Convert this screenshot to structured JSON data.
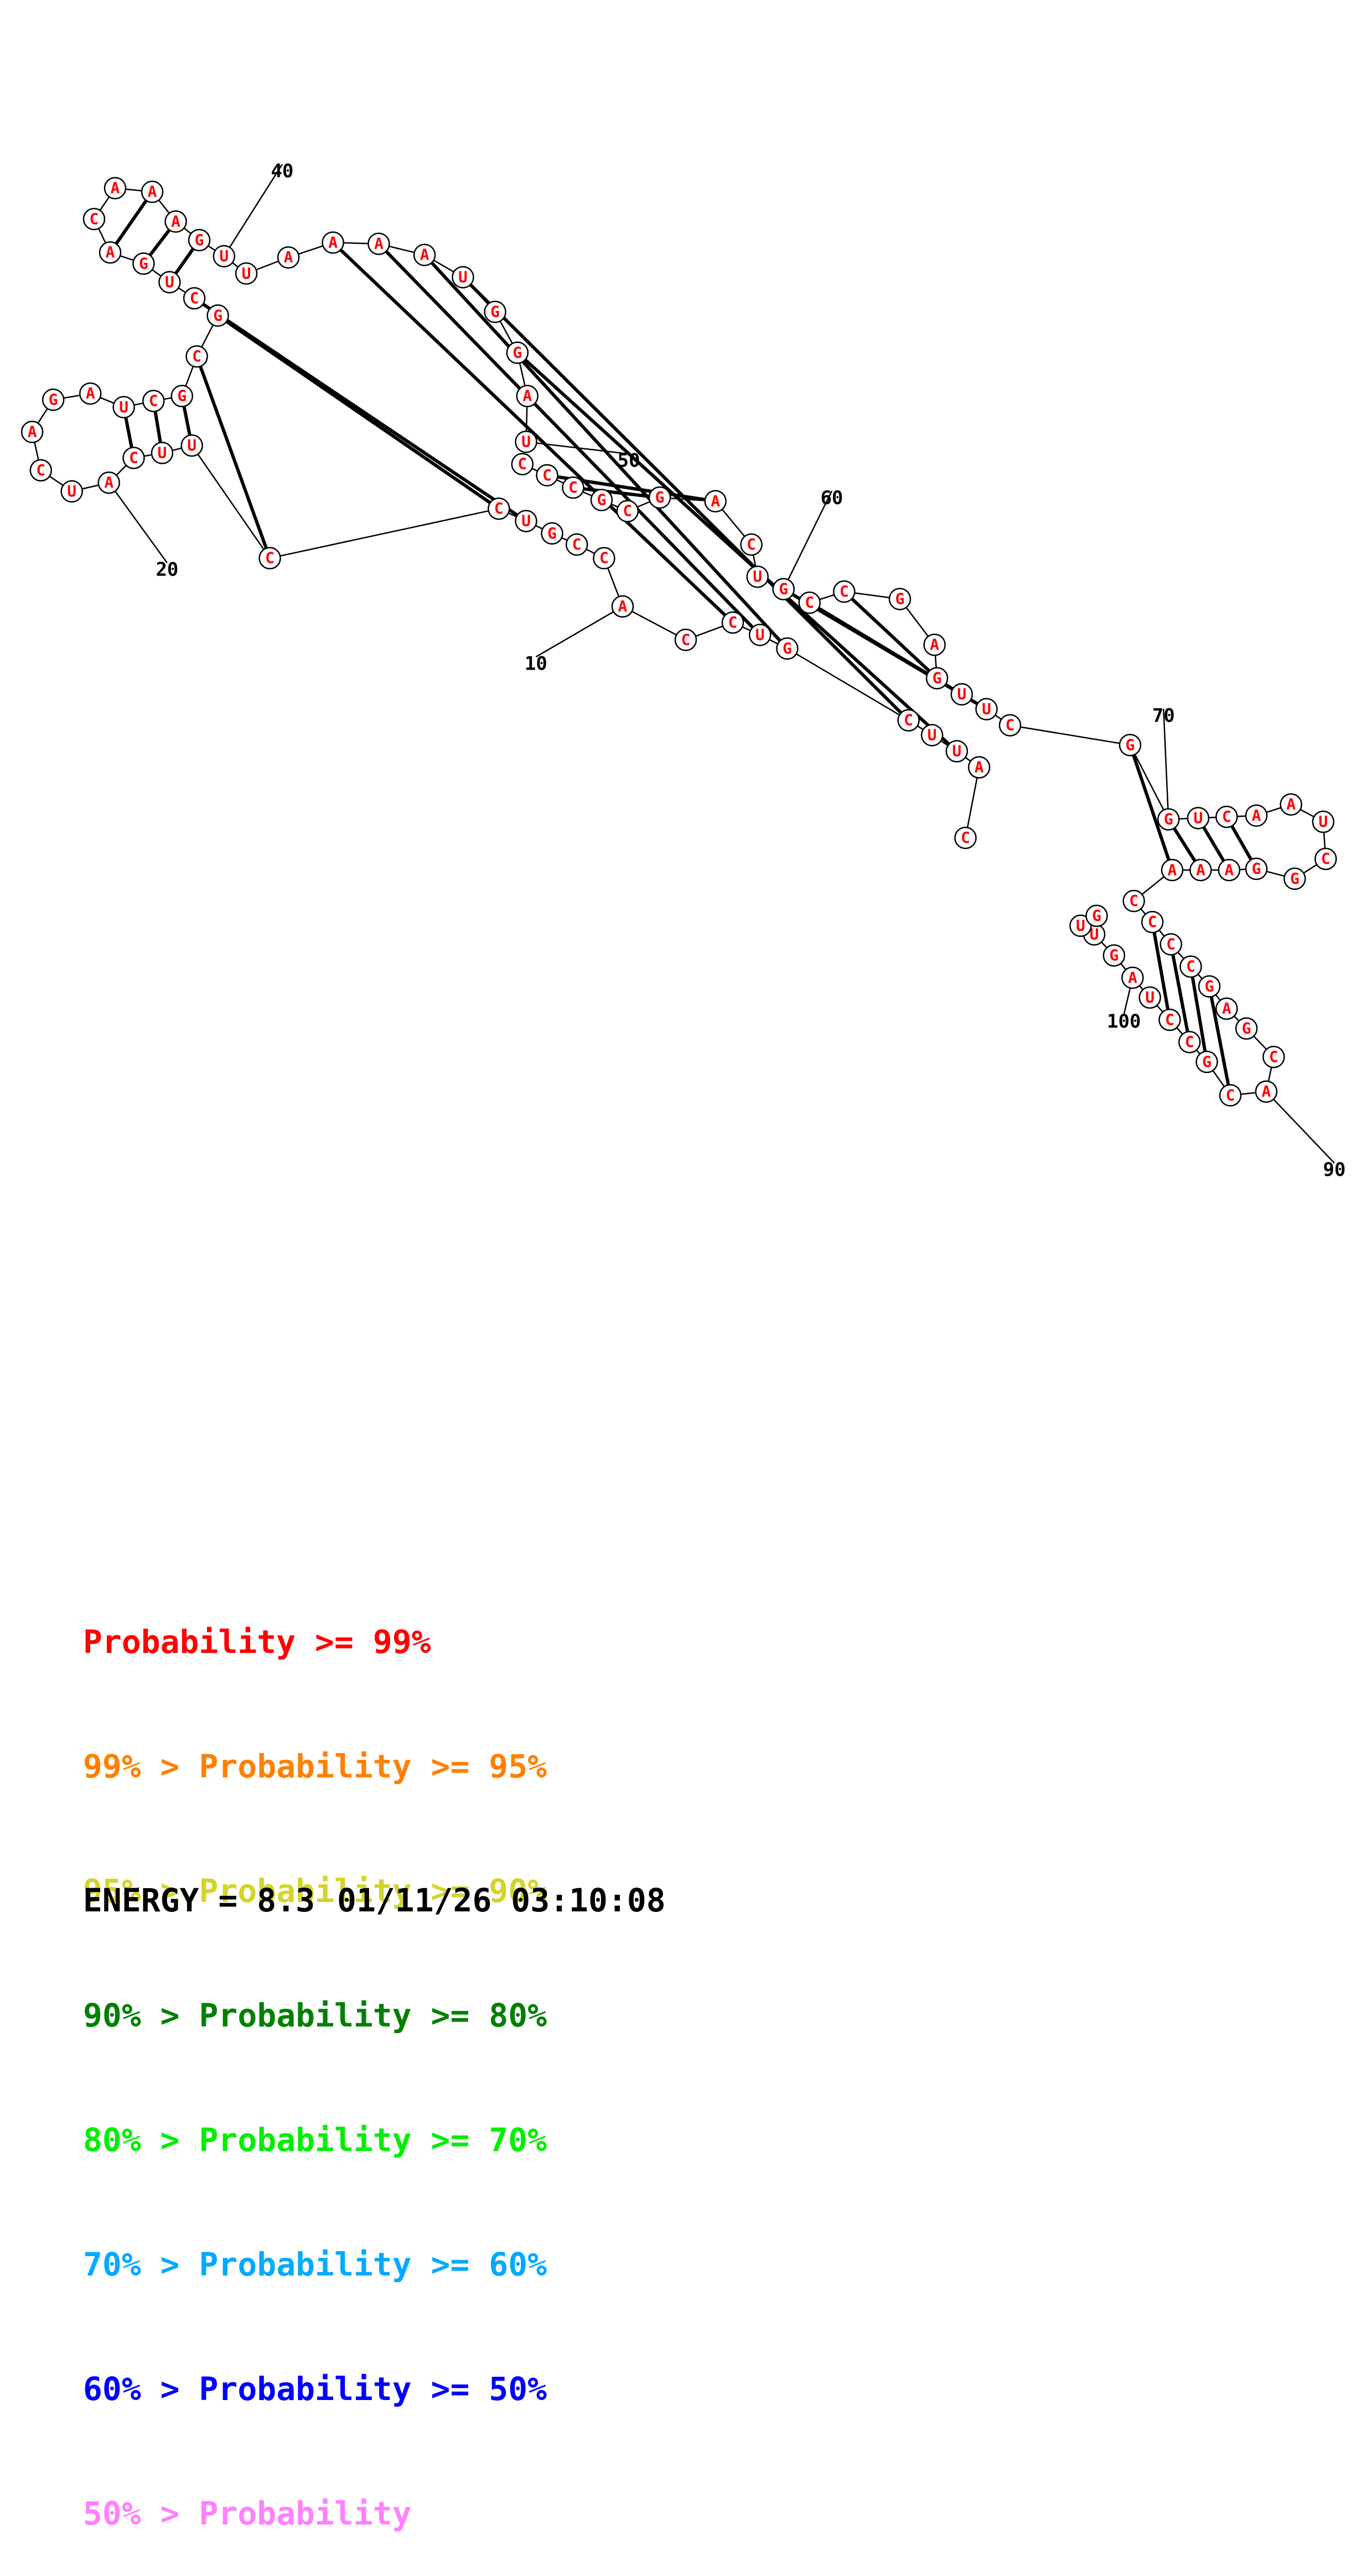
{
  "sequence": "CAUUCGUCCACCGUCCUUCAUCAGAUCGCGCUGACAAAGUUAAAAUGGAUCCCGCGACUGCCGAGUUCGGUCAAUCGGAAACCCCGAGCACGCCUAGUUG",
  "pairs": [
    [
      2,
      47
    ],
    [
      4,
      45
    ],
    [
      5,
      44
    ],
    [
      6,
      43
    ],
    [
      7,
      42
    ],
    [
      13,
      30
    ],
    [
      14,
      29
    ],
    [
      15,
      28
    ],
    [
      16,
      27
    ],
    [
      17,
      26
    ],
    [
      18,
      25
    ],
    [
      31,
      38
    ],
    [
      32,
      37
    ],
    [
      33,
      36
    ],
    [
      51,
      56
    ],
    [
      52,
      55
    ],
    [
      59,
      66
    ],
    [
      60,
      65
    ],
    [
      61,
      64
    ],
    [
      68,
      80
    ],
    [
      69,
      79
    ],
    [
      70,
      78
    ],
    [
      71,
      77
    ],
    [
      82,
      93
    ],
    [
      83,
      92
    ],
    [
      84,
      91
    ],
    [
      85,
      90
    ]
  ],
  "probability_levels": [
    9,
    9,
    9,
    9,
    9,
    9,
    9,
    9,
    9,
    9,
    9,
    9,
    9,
    9,
    9,
    9,
    9,
    9,
    9,
    9,
    9,
    9,
    9,
    9,
    9,
    9,
    9,
    9,
    9,
    9,
    9,
    9,
    9,
    9,
    9,
    9,
    9,
    9,
    9,
    9,
    9,
    9,
    9,
    9,
    9,
    9,
    9,
    9,
    9,
    9,
    9,
    9,
    9,
    9,
    9,
    9,
    9,
    9,
    9,
    9,
    9,
    9,
    9,
    9,
    9,
    9,
    9,
    9,
    9,
    9,
    9,
    9,
    9,
    9,
    9,
    9,
    9,
    9,
    9,
    9,
    9,
    9,
    9,
    9,
    9,
    9,
    9,
    9,
    9,
    9,
    9,
    9,
    9,
    9,
    9,
    9,
    9,
    9,
    9,
    9
  ],
  "tick_labels": [
    "10",
    "20",
    "40",
    "50",
    "60",
    "70",
    "90",
    "100"
  ],
  "legend": [
    {
      "range": "",
      "label": "Probability >= 99%",
      "color": "#ff0000"
    },
    {
      "range": "99% > ",
      "label": "Probability >= 95%",
      "color": "#ff8000"
    },
    {
      "range": "95% > ",
      "label": "Probability >= 90%",
      "color": "#d4d42a"
    },
    {
      "range": "90% > ",
      "label": "Probability >= 80%",
      "color": "#008000"
    },
    {
      "range": "80% > ",
      "label": "Probability >= 70%",
      "color": "#00ee00"
    },
    {
      "range": "70% > ",
      "label": "Probability >= 60%",
      "color": "#00aaff"
    },
    {
      "range": "60% > ",
      "label": "Probability >= 50%",
      "color": "#0000ff"
    },
    {
      "range": "50% > ",
      "label": "Probability",
      "color": "#ff80ff"
    }
  ],
  "energy_label": "ENERGY = 8.3",
  "timestamp": "01/11/26 03:10:08"
}
